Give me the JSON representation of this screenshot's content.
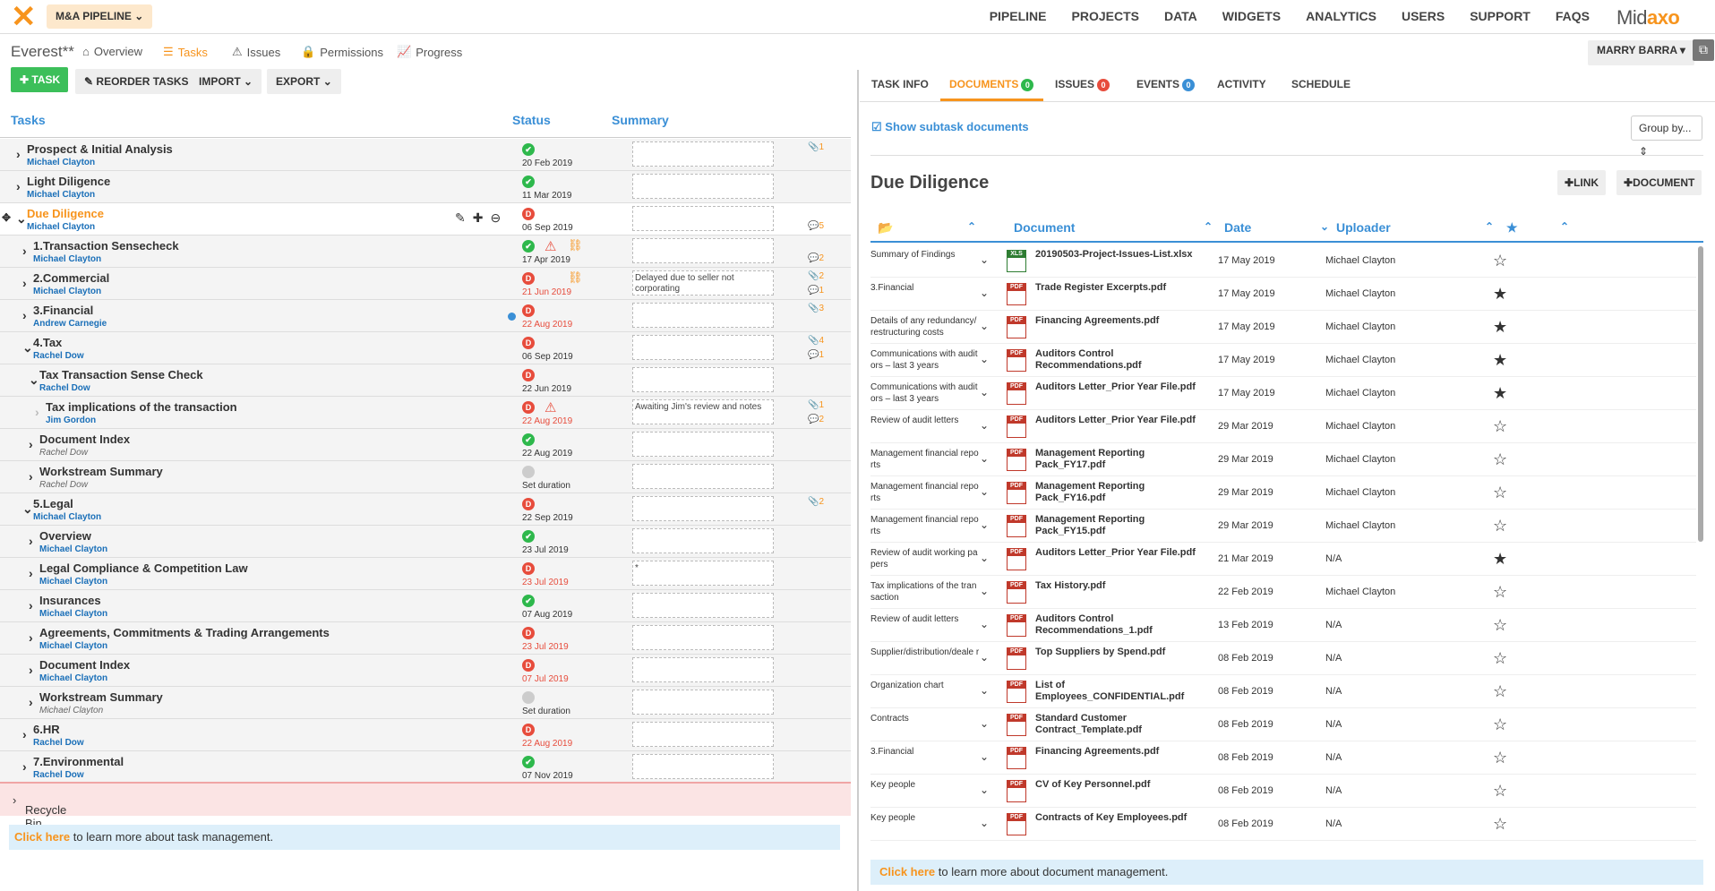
{
  "topbar": {
    "pipeline_label": "M&A PIPELINE",
    "nav": [
      "PIPELINE",
      "PROJECTS",
      "DATA",
      "WIDGETS",
      "ANALYTICS",
      "USERS",
      "SUPPORT",
      "FAQS"
    ],
    "brand_left": "Mid",
    "brand_right": "axo",
    "user": "MARRY BARRA"
  },
  "project": {
    "name": "Everest**",
    "tabs": [
      "Overview",
      "Tasks",
      "Issues",
      "Permissions",
      "Progress"
    ]
  },
  "toolbar": {
    "add_task": "TASK",
    "reorder": "REORDER TASKS",
    "import": "IMPORT",
    "export": "EXPORT"
  },
  "task_headers": {
    "tasks": "Tasks",
    "status": "Status",
    "summary": "Summary"
  },
  "tasks": [
    {
      "name": "Prospect & Initial Analysis",
      "assignee": "Michael Clayton",
      "date": "20 Feb 2019",
      "status": "ok",
      "count": "1",
      "count_icon": "attachment-icon"
    },
    {
      "name": "Light Diligence",
      "assignee": "Michael Clayton",
      "date": "11 Mar 2019",
      "status": "ok"
    },
    {
      "name": "Due Diligence",
      "assignee": "Michael Clayton",
      "date": "06 Sep 2019",
      "status": "D",
      "count": "5",
      "count_icon": "comment-icon"
    },
    {
      "name": "1.Transaction Sensecheck",
      "assignee": "Michael Clayton",
      "date": "17 Apr 2019",
      "status": "ok",
      "count": "2",
      "count_icon": "comment-icon"
    },
    {
      "name": "2.Commercial",
      "assignee": "Michael Clayton",
      "date": "21 Jun 2019",
      "status": "D",
      "summary": "Delayed due to seller not corporating",
      "count": "2",
      "count2": "1"
    },
    {
      "name": "3.Financial",
      "assignee": "Andrew Carnegie",
      "date": "22 Aug 2019",
      "status": "D",
      "count": "3"
    },
    {
      "name": "4.Tax",
      "assignee": "Rachel Dow",
      "date": "06 Sep 2019",
      "status": "D",
      "count": "4",
      "count2": "1"
    },
    {
      "name": "Tax Transaction Sense Check",
      "assignee": "Rachel Dow",
      "date": "22 Jun 2019",
      "status": "D"
    },
    {
      "name": "Tax implications of the transaction",
      "assignee": "Jim Gordon",
      "date": "22 Aug 2019",
      "status": "D",
      "summary": "Awaiting Jim's review and notes",
      "count": "1",
      "count2": "2"
    },
    {
      "name": "Document Index",
      "assignee": "Rachel Dow",
      "date": "22 Aug 2019",
      "status": "ok"
    },
    {
      "name": "Workstream Summary",
      "assignee": "Rachel Dow",
      "date": "Set duration",
      "status": "none"
    },
    {
      "name": "5.Legal",
      "assignee": "Michael Clayton",
      "date": "22 Sep 2019",
      "status": "D",
      "count": "2"
    },
    {
      "name": "Overview",
      "assignee": "Michael Clayton",
      "date": "23 Jul 2019",
      "status": "ok"
    },
    {
      "name": "Legal Compliance & Competition Law",
      "assignee": "Michael Clayton",
      "date": "23 Jul 2019",
      "status": "D",
      "summary": "*"
    },
    {
      "name": "Insurances",
      "assignee": "Michael Clayton",
      "date": "07 Aug 2019",
      "status": "ok"
    },
    {
      "name": "Agreements, Commitments & Trading Arrangements",
      "assignee": "Michael Clayton",
      "date": "23 Jul 2019",
      "status": "D"
    },
    {
      "name": "Document Index",
      "assignee": "Michael Clayton",
      "date": "07 Jul 2019",
      "status": "D"
    },
    {
      "name": "Workstream Summary",
      "assignee": "Michael Clayton",
      "date": "Set duration",
      "status": "none"
    },
    {
      "name": "6.HR",
      "assignee": "Rachel Dow",
      "date": "22 Aug 2019",
      "status": "D"
    },
    {
      "name": "7.Environmental",
      "assignee": "Rachel Dow",
      "date": "07 Nov 2019",
      "status": "ok"
    }
  ],
  "recycle_bin": "Recycle Bin",
  "help_left": {
    "link": "Click here",
    "text": " to learn more about task management."
  },
  "right_tabs": [
    {
      "label": "TASK INFO"
    },
    {
      "label": "DOCUMENTS",
      "badge": "0",
      "badge_color": "#2eb84c"
    },
    {
      "label": "ISSUES",
      "badge": "0",
      "badge_color": "#e74c3c"
    },
    {
      "label": "EVENTS",
      "badge": "0",
      "badge_color": "#3a8fd6"
    },
    {
      "label": "ACTIVITY"
    },
    {
      "label": "SCHEDULE"
    }
  ],
  "docs_panel": {
    "show_subtask": "Show subtask documents",
    "group_by": "Group by...",
    "title": "Due Diligence",
    "link_btn": "LINK",
    "doc_btn": "DOCUMENT",
    "headers": {
      "document": "Document",
      "date": "Date",
      "uploader": "Uploader"
    }
  },
  "documents": [
    {
      "category": "Summary of Findings",
      "name": "20190503-Project-Issues-List.xlsx",
      "date": "17 May 2019",
      "uploader": "Michael Clayton",
      "type": "xls",
      "starred": false
    },
    {
      "category": "3.Financial",
      "name": "Trade Register Excerpts.pdf",
      "date": "17 May 2019",
      "uploader": "Michael Clayton",
      "type": "pdf",
      "starred": true
    },
    {
      "category": "Details of any redundancy/ restructuring costs",
      "name": "Financing Agreements.pdf",
      "date": "17 May 2019",
      "uploader": "Michael Clayton",
      "type": "pdf",
      "starred": true
    },
    {
      "category": "Communications with audit ors – last 3 years",
      "name": "Auditors Control Recommendations.pdf",
      "date": "17 May 2019",
      "uploader": "Michael Clayton",
      "type": "pdf",
      "starred": true
    },
    {
      "category": "Communications with audit ors – last 3 years",
      "name": "Auditors Letter_Prior Year File.pdf",
      "date": "17 May 2019",
      "uploader": "Michael Clayton",
      "type": "pdf",
      "starred": true
    },
    {
      "category": "Review of audit letters",
      "name": "Auditors Letter_Prior Year File.pdf",
      "date": "29 Mar 2019",
      "uploader": "Michael Clayton",
      "type": "pdf",
      "starred": false
    },
    {
      "category": "Management financial repo rts",
      "name": "Management Reporting Pack_FY17.pdf",
      "date": "29 Mar 2019",
      "uploader": "Michael Clayton",
      "type": "pdf",
      "starred": false
    },
    {
      "category": "Management financial repo rts",
      "name": "Management Reporting Pack_FY16.pdf",
      "date": "29 Mar 2019",
      "uploader": "Michael Clayton",
      "type": "pdf",
      "starred": false
    },
    {
      "category": "Management financial repo rts",
      "name": "Management Reporting Pack_FY15.pdf",
      "date": "29 Mar 2019",
      "uploader": "Michael Clayton",
      "type": "pdf",
      "starred": false
    },
    {
      "category": "Review of audit working pa pers",
      "name": "Auditors Letter_Prior Year File.pdf",
      "date": "21 Mar 2019",
      "uploader": "N/A",
      "type": "pdf",
      "starred": true
    },
    {
      "category": "Tax implications of the tran saction",
      "name": "Tax History.pdf",
      "date": "22 Feb 2019",
      "uploader": "Michael Clayton",
      "type": "pdf",
      "starred": false
    },
    {
      "category": "Review of audit letters",
      "name": "Auditors Control Recommendations_1.pdf",
      "date": "13 Feb 2019",
      "uploader": "N/A",
      "type": "pdf",
      "starred": false
    },
    {
      "category": "Supplier/distribution/deale r",
      "name": "Top Suppliers by Spend.pdf",
      "date": "08 Feb 2019",
      "uploader": "N/A",
      "type": "pdf",
      "starred": false
    },
    {
      "category": "Organization chart",
      "name": "List of Employees_CONFIDENTIAL.pdf",
      "date": "08 Feb 2019",
      "uploader": "N/A",
      "type": "pdf",
      "starred": false
    },
    {
      "category": "Contracts",
      "name": "Standard Customer Contract_Template.pdf",
      "date": "08 Feb 2019",
      "uploader": "N/A",
      "type": "pdf",
      "starred": false
    },
    {
      "category": "3.Financial",
      "name": "Financing Agreements.pdf",
      "date": "08 Feb 2019",
      "uploader": "N/A",
      "type": "pdf",
      "starred": false
    },
    {
      "category": "Key people",
      "name": "CV of Key Personnel.pdf",
      "date": "08 Feb 2019",
      "uploader": "N/A",
      "type": "pdf",
      "starred": false
    },
    {
      "category": "Key people",
      "name": "Contracts of Key Employees.pdf",
      "date": "08 Feb 2019",
      "uploader": "N/A",
      "type": "pdf",
      "starred": false
    }
  ],
  "help_right": {
    "link": "Click here",
    "text": " to learn more about document management."
  }
}
